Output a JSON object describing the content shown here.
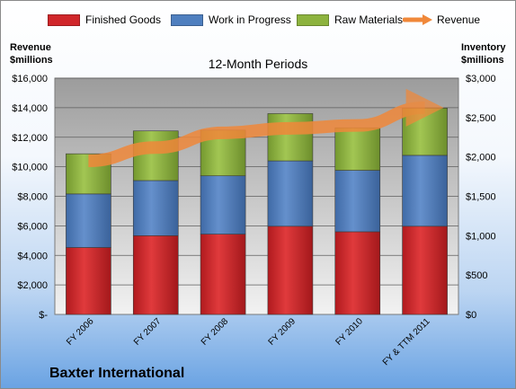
{
  "legend": {
    "finished_goods": "Finished Goods",
    "work_in_progress": "Work in Progress",
    "raw_materials": "Raw Materials",
    "revenue": "Revenue"
  },
  "left_axis_title": [
    "Revenue",
    "$millions"
  ],
  "right_axis_title": [
    "Inventory",
    "$millions"
  ],
  "subtitle": "12-Month Periods",
  "company": "Baxter International",
  "colors": {
    "finished_goods": "#d0262a",
    "work_in_progress": "#4f7fbf",
    "raw_materials": "#8db33e",
    "revenue": "#f0883a"
  },
  "chart_data": {
    "type": "bar",
    "stacked": true,
    "categories": [
      "FY 2006",
      "FY 2007",
      "FY 2008",
      "FY 2009",
      "FY 2010",
      "FY & TTM 2011"
    ],
    "series": [
      {
        "name": "Finished Goods",
        "axis": "right",
        "values": [
          850,
          1000,
          1020,
          1120,
          1050,
          1120
        ]
      },
      {
        "name": "Work in Progress",
        "axis": "right",
        "values": [
          680,
          700,
          740,
          830,
          780,
          900
        ]
      },
      {
        "name": "Raw Materials",
        "axis": "right",
        "values": [
          510,
          630,
          580,
          600,
          540,
          600
        ]
      },
      {
        "name": "Revenue",
        "type": "line",
        "axis": "left",
        "values": [
          10400,
          11300,
          12300,
          12600,
          12800,
          14000
        ]
      }
    ],
    "left_axis": {
      "ylim": [
        0,
        16000
      ],
      "ticks": [
        "$-",
        "$2,000",
        "$4,000",
        "$6,000",
        "$8,000",
        "$10,000",
        "$12,000",
        "$14,000",
        "$16,000"
      ]
    },
    "right_axis": {
      "ylim": [
        0,
        3000
      ],
      "ticks": [
        "$0",
        "$500",
        "$1,000",
        "$1,500",
        "$2,000",
        "$2,500",
        "$3,000"
      ]
    },
    "grid": true,
    "legend_position": "top"
  }
}
